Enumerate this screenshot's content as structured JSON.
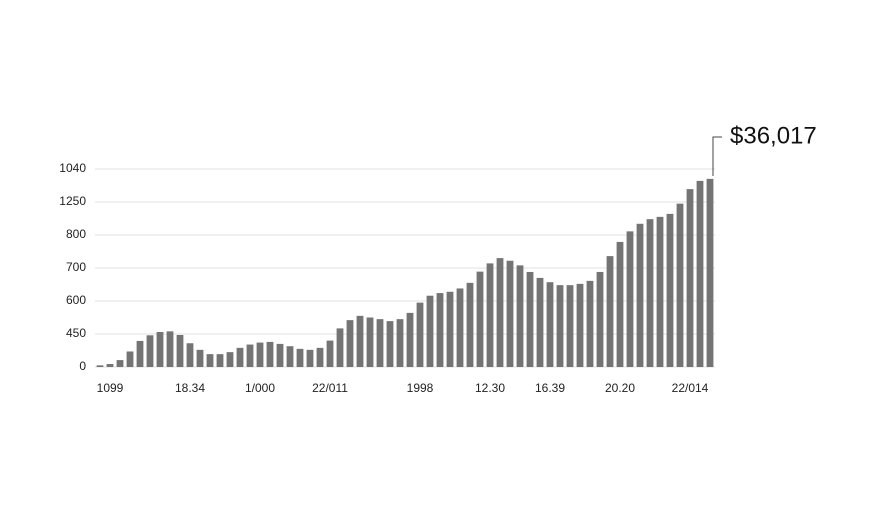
{
  "chart_data": {
    "type": "bar",
    "annotation": "$36,017",
    "categories": [
      null,
      "1099",
      null,
      null,
      null,
      null,
      null,
      null,
      null,
      "18.34",
      null,
      null,
      null,
      null,
      null,
      null,
      "1/000",
      null,
      null,
      null,
      null,
      null,
      null,
      "22/011",
      null,
      null,
      null,
      null,
      null,
      null,
      null,
      null,
      "1998",
      null,
      null,
      null,
      null,
      null,
      null,
      "12.30",
      null,
      null,
      null,
      null,
      null,
      "16.39",
      null,
      null,
      null,
      null,
      null,
      null,
      "20.20",
      null,
      null,
      null,
      null,
      null,
      null,
      "22/014",
      null,
      null
    ],
    "values": [
      0.05,
      0.09,
      0.21,
      0.47,
      0.79,
      0.96,
      1.06,
      1.08,
      0.97,
      0.72,
      0.52,
      0.39,
      0.39,
      0.45,
      0.58,
      0.68,
      0.74,
      0.76,
      0.7,
      0.63,
      0.55,
      0.52,
      0.58,
      0.8,
      1.17,
      1.42,
      1.55,
      1.5,
      1.45,
      1.39,
      1.45,
      1.64,
      1.95,
      2.16,
      2.24,
      2.28,
      2.38,
      2.55,
      2.89,
      3.14,
      3.3,
      3.22,
      3.08,
      2.88,
      2.7,
      2.57,
      2.48,
      2.48,
      2.52,
      2.61,
      2.88,
      3.36,
      3.79,
      4.11,
      4.34,
      4.48,
      4.55,
      4.64,
      4.95,
      5.39,
      5.64,
      5.7
    ],
    "color": "#747474",
    "ylim": [
      0,
      6
    ],
    "yticks": [
      0,
      {
        "value": 1,
        "label": "450"
      },
      {
        "value": 2,
        "label": "600"
      },
      {
        "value": 3,
        "label": "700"
      },
      {
        "value": 4,
        "label": "800"
      },
      {
        "value": 5,
        "label": "1250"
      },
      {
        "value": 6,
        "label": "1040"
      }
    ],
    "grid": true
  }
}
